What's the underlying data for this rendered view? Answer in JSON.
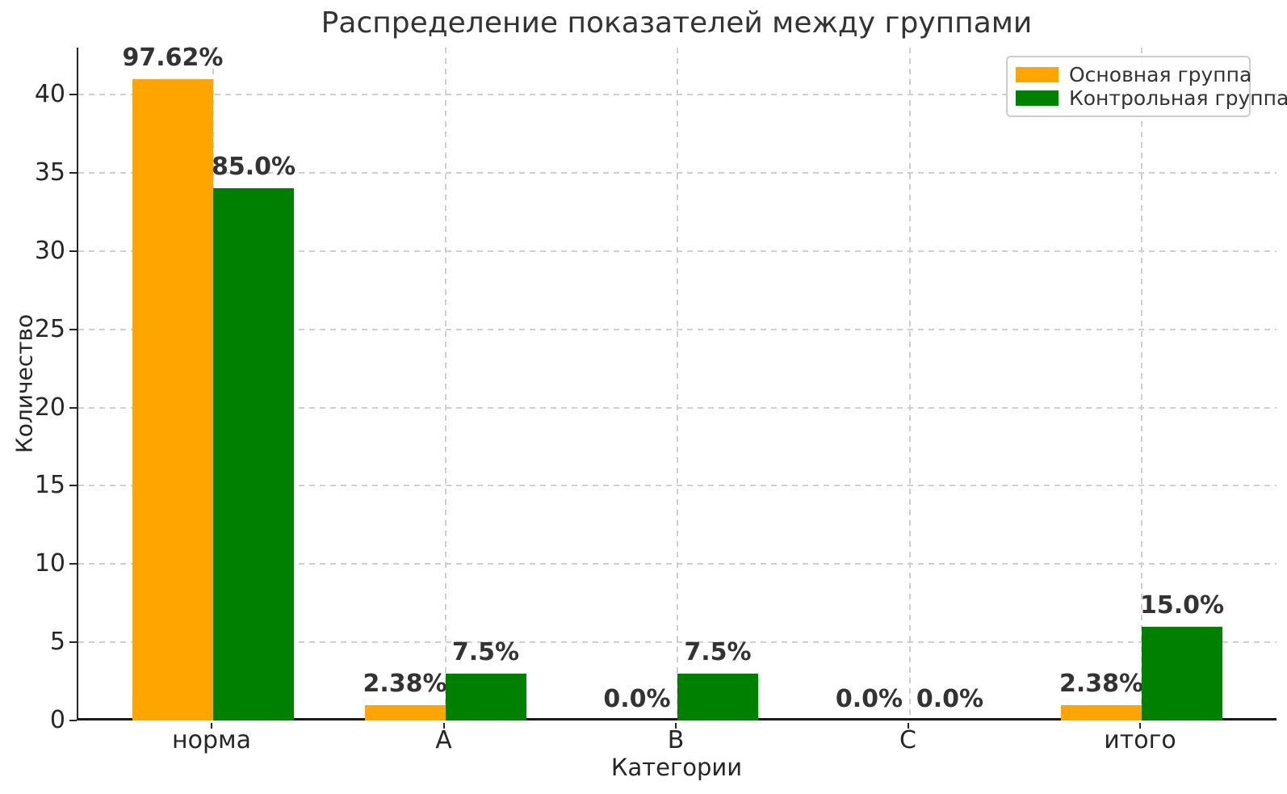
{
  "chart_data": {
    "type": "bar",
    "title": "Распределение показателей между группами",
    "xlabel": "Категории",
    "ylabel": "Количество",
    "categories": [
      "норма",
      "A",
      "B",
      "C",
      "итого"
    ],
    "series": [
      {
        "name": "Основная группа",
        "color": "#FFA500",
        "values": [
          41,
          1,
          0,
          0,
          1
        ],
        "labels": [
          "97.62%",
          "2.38%",
          "0.0%",
          "0.0%",
          "2.38%"
        ]
      },
      {
        "name": "Контрольная группа",
        "color": "#008000",
        "values": [
          34,
          3,
          3,
          0,
          6
        ],
        "labels": [
          "85.0%",
          "7.5%",
          "7.5%",
          "0.0%",
          "15.0%"
        ]
      }
    ],
    "yticks": [
      0,
      5,
      10,
      15,
      20,
      25,
      30,
      35,
      40
    ],
    "ylim": [
      0,
      43
    ],
    "grid": "dashed, both axes",
    "legend_position": "upper right",
    "axis_color": "#262626",
    "grid_color": "#cfcfcf",
    "label_color": "#333333"
  }
}
